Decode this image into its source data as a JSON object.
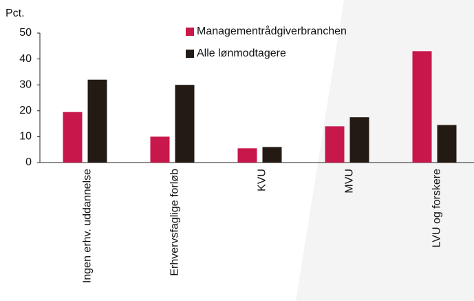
{
  "chart_data": {
    "type": "bar",
    "y_label": "Pct.",
    "categories": [
      "Ingen erhv. uddannelse",
      "Erhvervsfaglige forløb",
      "KVU",
      "MVU",
      "LVU og forskere"
    ],
    "series": [
      {
        "name": "Managementrådgiverbranchen",
        "color": "#c8174a",
        "values": [
          19.5,
          10,
          5.5,
          14,
          43
        ]
      },
      {
        "name": "Alle lønmodtagere",
        "color": "#231a14",
        "values": [
          32,
          30,
          6,
          17.5,
          14.5
        ]
      }
    ],
    "ylim": [
      0,
      50
    ],
    "yticks": [
      0,
      10,
      20,
      30,
      40,
      50
    ],
    "grid": false
  }
}
